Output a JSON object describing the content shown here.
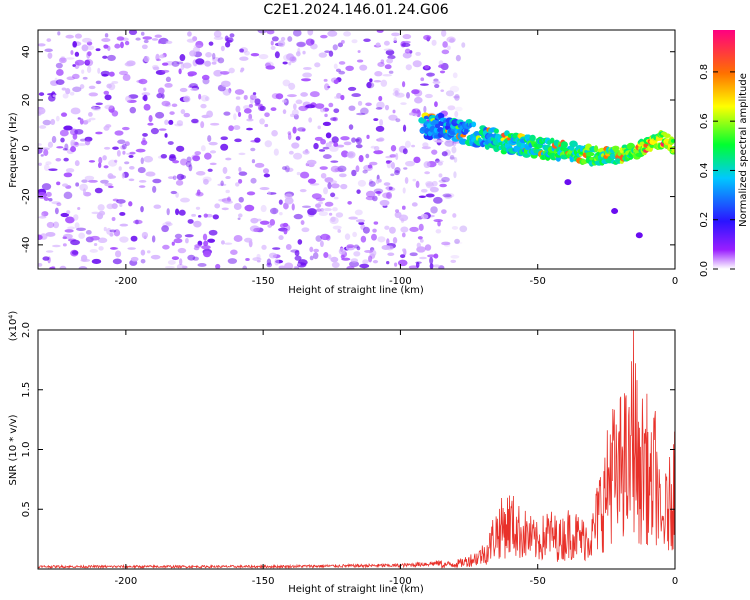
{
  "chart_data": [
    {
      "type": "heatmap",
      "title": "C2E1.2024.146.01.24.G06",
      "xlabel": "Height of straight line (km)",
      "ylabel": "Frequency (Hz)",
      "xlim": [
        -232,
        0
      ],
      "ylim": [
        -50,
        49
      ],
      "x_ticks": [
        -200,
        -150,
        -100,
        -50,
        0
      ],
      "y_ticks": [
        -40,
        -20,
        0,
        20,
        40
      ],
      "colorbar": {
        "label": "Normalized spectral amplitude",
        "range": [
          0.0,
          0.97
        ],
        "ticks": [
          "0.0",
          "0.2",
          "0.4",
          "0.6",
          "0.8"
        ],
        "colors": [
          "#ffffff",
          "#9a1fff",
          "#2a14ff",
          "#00c8ff",
          "#00ff30",
          "#ffff00",
          "#ff7000",
          "#ff0080"
        ]
      },
      "noise_region": {
        "x": [
          -232,
          -83
        ],
        "amplitude": "0.0-0.3"
      },
      "signal_track": {
        "x": [
          -92,
          -80,
          -70,
          -60,
          -50,
          -40,
          -30,
          -20,
          -10,
          -4,
          0
        ],
        "y": [
          10,
          8,
          5,
          2,
          0,
          -1,
          -3,
          -3,
          1,
          4,
          0
        ],
        "peak_amplitude": 0.9
      },
      "isolated_blobs": [
        {
          "x": -39,
          "y": -14
        },
        {
          "x": -22,
          "y": -26
        },
        {
          "x": -13,
          "y": -36
        }
      ]
    },
    {
      "type": "line",
      "title": "",
      "xlabel": "Height of straight line (km)",
      "ylabel": "SNR (10 * v/v)",
      "y_multiplier": "(x10⁴)",
      "xlim": [
        -232,
        0
      ],
      "ylim": [
        0,
        2.0
      ],
      "x_ticks": [
        -200,
        -150,
        -100,
        -50,
        0
      ],
      "y_ticks": [
        0.5,
        1.0,
        1.5,
        2.0
      ],
      "series": [
        {
          "color": "#e8312a",
          "x": [
            -232,
            -200,
            -150,
            -100,
            -85,
            -78,
            -72,
            -68,
            -66,
            -63,
            -60,
            -57,
            -54,
            -50,
            -46,
            -42,
            -38,
            -34,
            -30,
            -27,
            -25,
            -23,
            -21,
            -19,
            -17,
            -15,
            -13,
            -11,
            -9,
            -7,
            -5,
            -4,
            -2,
            0
          ],
          "y": [
            0.02,
            0.02,
            0.02,
            0.03,
            0.05,
            0.08,
            0.15,
            0.25,
            0.45,
            0.55,
            0.62,
            0.5,
            0.45,
            0.35,
            0.48,
            0.38,
            0.5,
            0.4,
            0.45,
            0.85,
            1.0,
            1.45,
            1.05,
            1.6,
            1.2,
            2.0,
            1.1,
            1.55,
            1.0,
            1.3,
            0.5,
            0.7,
            0.85,
            1.2
          ]
        }
      ]
    }
  ]
}
